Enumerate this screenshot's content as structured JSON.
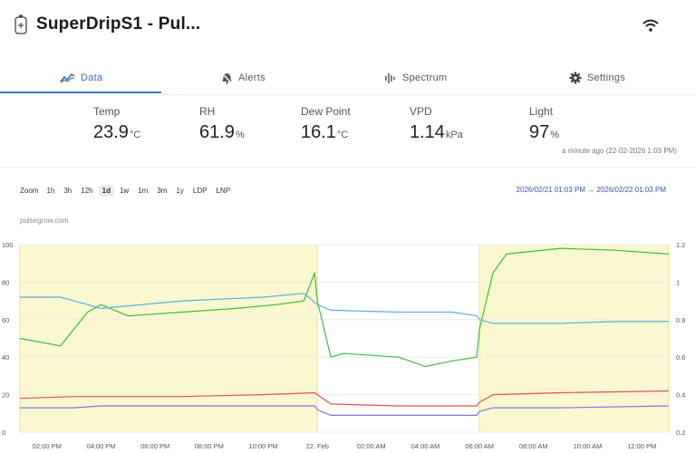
{
  "header": {
    "title": "SuperDripS1 - Pul...",
    "device_icon": "device-icon",
    "status_icon": "wifi-icon"
  },
  "tabs": [
    {
      "label": "Data",
      "icon": "chart-line-icon",
      "active": true
    },
    {
      "label": "Alerts",
      "icon": "alert-bell-icon",
      "active": false
    },
    {
      "label": "Spectrum",
      "icon": "spectrum-icon",
      "active": false
    },
    {
      "label": "Settings",
      "icon": "gear-icon",
      "active": false
    }
  ],
  "metrics": [
    {
      "label": "Temp",
      "value": "23.9",
      "unit": "°C"
    },
    {
      "label": "RH",
      "value": "61.9",
      "unit": "%"
    },
    {
      "label": "Dew Point",
      "value": "16.1",
      "unit": "°C"
    },
    {
      "label": "VPD",
      "value": "1.14",
      "unit": "kPa"
    },
    {
      "label": "Light",
      "value": "97",
      "unit": "%"
    }
  ],
  "last_updated": "a minute ago (22-02-2026 1:03 PM)",
  "zoom": {
    "label": "Zoom",
    "options": [
      "1h",
      "3h",
      "12h",
      "1d",
      "1w",
      "1m",
      "3m",
      "1y",
      "LDP",
      "LNP"
    ],
    "selected": "1d"
  },
  "date_range": "2026/02/21 01:03 PM  →  2026/02/22 01:03 PM",
  "source": "pulsegrow.com",
  "colors": {
    "accent": "#3a79c0",
    "rh": "#3dbb3d",
    "temp_line": "#5ab0e0",
    "dewpoint": "#e05050",
    "vpd": "#7a7ae0",
    "light_band": "#fbf7d0"
  },
  "chart_data": {
    "type": "line",
    "x_ticks": [
      "02:00 PM",
      "04:00 PM",
      "06:00 PM",
      "08:00 PM",
      "10:00 PM",
      "22. Feb",
      "02:00 AM",
      "04:00 AM",
      "06:00 AM",
      "08:00 AM",
      "10:00 AM",
      "12:00 PM"
    ],
    "x_range_hours": [
      0,
      24
    ],
    "y_left": {
      "ticks": [
        "100",
        "80",
        "60",
        "40",
        "20",
        "0"
      ],
      "range": [
        0,
        100
      ]
    },
    "y_right": {
      "ticks": [
        "1.2",
        "1",
        "0.8",
        "0.6",
        "0.4",
        "0.2"
      ],
      "range": [
        0.2,
        1.2
      ]
    },
    "lights_on_periods": [
      [
        0,
        11
      ],
      [
        17,
        24
      ]
    ],
    "series": [
      {
        "name": "RH",
        "axis": "left",
        "points": [
          [
            0,
            50
          ],
          [
            1.5,
            46
          ],
          [
            2.5,
            64
          ],
          [
            3,
            68
          ],
          [
            4,
            62
          ],
          [
            6,
            64
          ],
          [
            8,
            66
          ],
          [
            9.5,
            68
          ],
          [
            10.5,
            70
          ],
          [
            10.9,
            85
          ],
          [
            11,
            70
          ],
          [
            11.5,
            40
          ],
          [
            12,
            42
          ],
          [
            14,
            40
          ],
          [
            15,
            35
          ],
          [
            16,
            38
          ],
          [
            16.9,
            40
          ],
          [
            17,
            55
          ],
          [
            17.5,
            85
          ],
          [
            18,
            95
          ],
          [
            20,
            98
          ],
          [
            22,
            97
          ],
          [
            24,
            95
          ]
        ]
      },
      {
        "name": "Temperature",
        "axis": "left",
        "points": [
          [
            0,
            72
          ],
          [
            1.5,
            72
          ],
          [
            2,
            70
          ],
          [
            3,
            66
          ],
          [
            6,
            70
          ],
          [
            9,
            72
          ],
          [
            10.5,
            74
          ],
          [
            11,
            68
          ],
          [
            11.5,
            65
          ],
          [
            14,
            64
          ],
          [
            16,
            64
          ],
          [
            16.9,
            62
          ],
          [
            17,
            60
          ],
          [
            17.5,
            58
          ],
          [
            20,
            58
          ],
          [
            22,
            59
          ],
          [
            24,
            59
          ]
        ]
      },
      {
        "name": "Dew Point",
        "axis": "left",
        "points": [
          [
            0,
            18
          ],
          [
            2,
            19
          ],
          [
            3,
            19
          ],
          [
            6,
            19
          ],
          [
            9,
            20
          ],
          [
            10.9,
            21
          ],
          [
            11,
            20
          ],
          [
            11.5,
            15
          ],
          [
            14,
            14
          ],
          [
            16.9,
            14
          ],
          [
            17,
            16
          ],
          [
            17.5,
            20
          ],
          [
            20,
            21
          ],
          [
            24,
            22
          ]
        ]
      },
      {
        "name": "VPD",
        "axis": "left",
        "points": [
          [
            0,
            13
          ],
          [
            2,
            13
          ],
          [
            3,
            14
          ],
          [
            6,
            14
          ],
          [
            9,
            14
          ],
          [
            10.9,
            14
          ],
          [
            11,
            12
          ],
          [
            11.5,
            9
          ],
          [
            14,
            9
          ],
          [
            16.9,
            9
          ],
          [
            17,
            11
          ],
          [
            17.5,
            13
          ],
          [
            20,
            13
          ],
          [
            24,
            14
          ]
        ]
      }
    ]
  }
}
